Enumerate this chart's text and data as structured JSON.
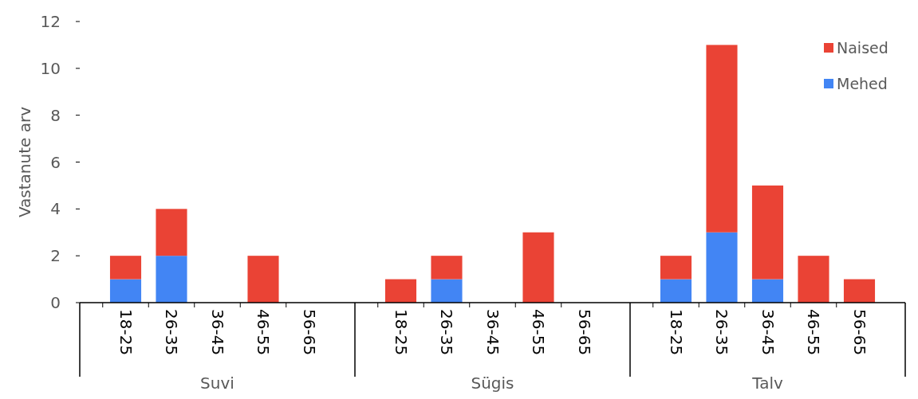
{
  "chart_data": {
    "type": "bar",
    "stacked": true,
    "ylabel": "Vastanute arv",
    "categories": [
      "18-25",
      "26-35",
      "36-45",
      "46-55",
      "56-65",
      "18-25",
      "26-35",
      "36-45",
      "46-55",
      "56-65",
      "18-25",
      "26-35",
      "36-45",
      "46-55",
      "56-65"
    ],
    "series": [
      {
        "name": "Mehed",
        "color": "#4285f4",
        "values": [
          1,
          2,
          0,
          0,
          0,
          0,
          1,
          0,
          0,
          0,
          1,
          3,
          1,
          0,
          0
        ]
      },
      {
        "name": "Naised",
        "color": "#ea4335",
        "values": [
          1,
          2,
          0,
          2,
          0,
          1,
          1,
          0,
          3,
          0,
          1,
          8,
          4,
          2,
          1
        ]
      }
    ],
    "ylim": [
      0,
      12
    ],
    "yticks": [
      0,
      2,
      4,
      6,
      8,
      10,
      12
    ],
    "grid": false,
    "legend": "top right",
    "annotations": [
      "Suvi",
      "Sügis",
      "Talv"
    ]
  }
}
